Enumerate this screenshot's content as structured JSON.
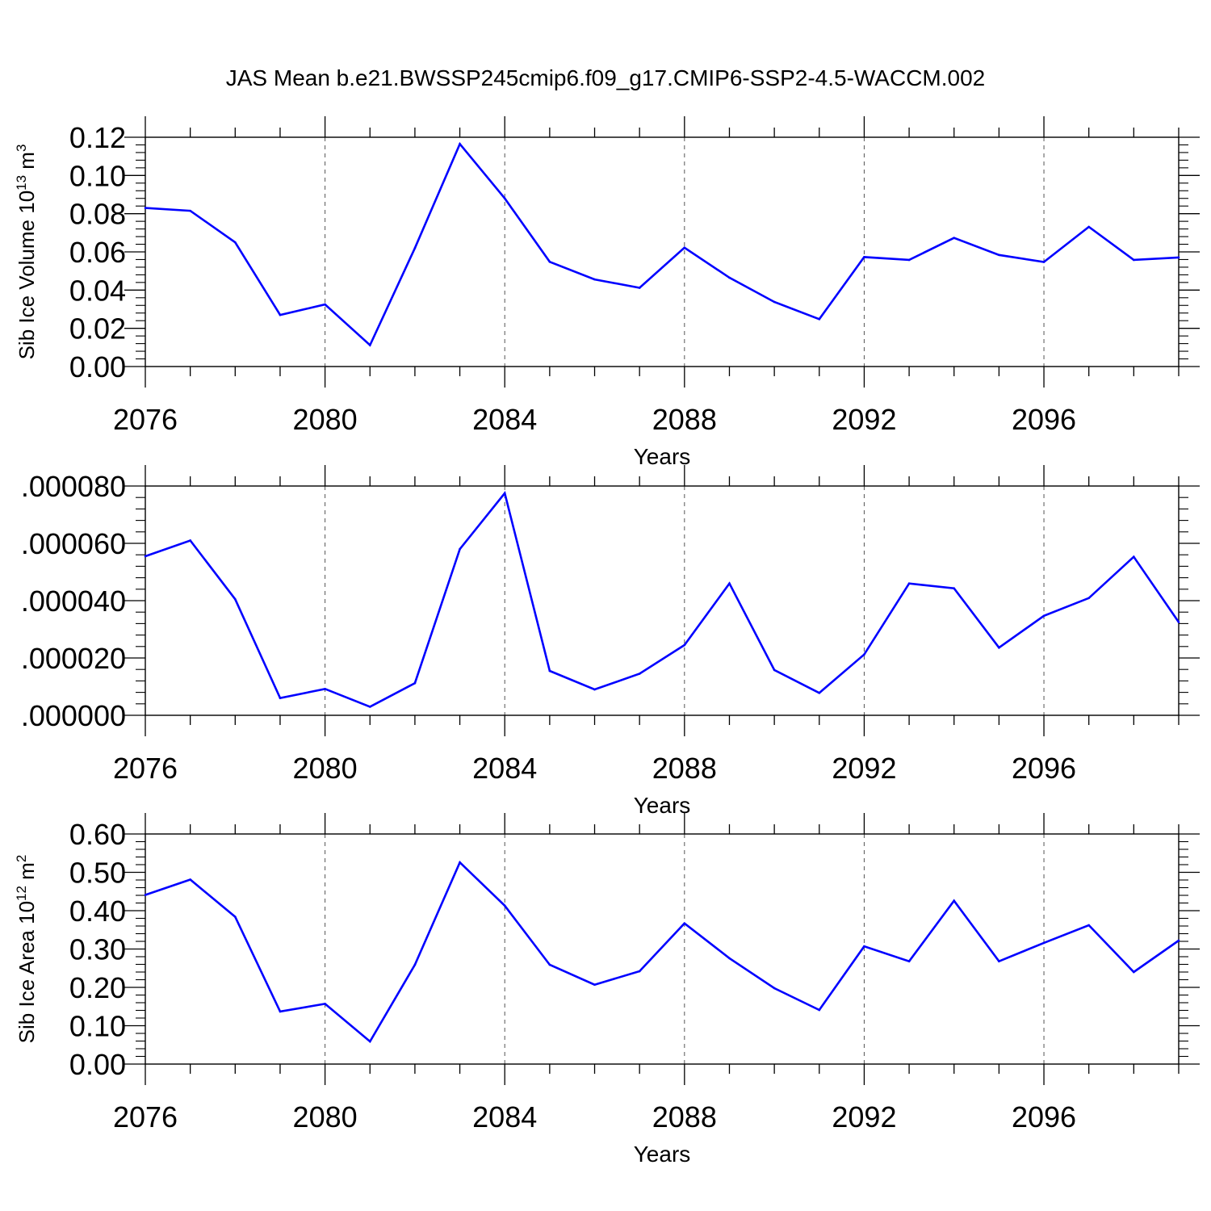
{
  "title": "JAS Mean b.e21.BWSSP245cmip6.f09_g17.CMIP6-SSP2-4.5-WACCM.002",
  "colors": {
    "line": "#0000ff",
    "axis": "#000000",
    "grid": "#555555"
  },
  "chart_data": [
    {
      "type": "line",
      "ylabel": {
        "main": "Sib Ice Volume 10",
        "sup1": "13",
        "unit": " m",
        "sup2": "3"
      },
      "xlabel": "Years",
      "xlim": [
        2076,
        2099
      ],
      "xticks": [
        2076,
        2080,
        2084,
        2088,
        2092,
        2096
      ],
      "xtick_labels": [
        "2076",
        "2080",
        "2084",
        "2088",
        "2092",
        "2096"
      ],
      "ylim": [
        0.0,
        0.12
      ],
      "yticks": [
        0.0,
        0.02,
        0.04,
        0.06,
        0.08,
        0.1,
        0.12
      ],
      "ytick_labels": [
        "0.00",
        "0.02",
        "0.04",
        "0.06",
        "0.08",
        "0.10",
        "0.12"
      ],
      "x": [
        2076,
        2077,
        2078,
        2079,
        2080,
        2081,
        2082,
        2083,
        2084,
        2085,
        2086,
        2087,
        2088,
        2089,
        2090,
        2091,
        2092,
        2093,
        2094,
        2095,
        2096,
        2097,
        2098,
        2099
      ],
      "values": [
        0.083,
        0.0815,
        0.065,
        0.027,
        0.0325,
        0.0112,
        0.062,
        0.1165,
        0.088,
        0.0548,
        0.0456,
        0.0412,
        0.0622,
        0.0465,
        0.0338,
        0.0248,
        0.0573,
        0.0558,
        0.0673,
        0.0584,
        0.0547,
        0.0731,
        0.0558,
        0.0571
      ]
    },
    {
      "type": "line",
      "ylabel": null,
      "xlabel": "Years",
      "xlim": [
        2076,
        2099
      ],
      "xticks": [
        2076,
        2080,
        2084,
        2088,
        2092,
        2096
      ],
      "xtick_labels": [
        "2076",
        "2080",
        "2084",
        "2088",
        "2092",
        "2096"
      ],
      "ylim": [
        0.0,
        8e-05
      ],
      "yticks": [
        0.0,
        2e-05,
        4e-05,
        6e-05,
        8e-05
      ],
      "ytick_labels": [
        ".000000",
        ".000020",
        ".000040",
        ".000060",
        ".000080"
      ],
      "x": [
        2076,
        2077,
        2078,
        2079,
        2080,
        2081,
        2082,
        2083,
        2084,
        2085,
        2086,
        2087,
        2088,
        2089,
        2090,
        2091,
        2092,
        2093,
        2094,
        2095,
        2096,
        2097,
        2098,
        2099
      ],
      "values": [
        5.55e-05,
        6.1e-05,
        4.05e-05,
        6e-06,
        9.2e-06,
        3e-06,
        1.12e-05,
        5.8e-05,
        7.75e-05,
        1.55e-05,
        9e-06,
        1.45e-05,
        2.45e-05,
        4.6e-05,
        1.58e-05,
        7.8e-06,
        2.12e-05,
        4.6e-05,
        4.43e-05,
        2.36e-05,
        3.47e-05,
        4.09e-05,
        5.53e-05,
        3.25e-05
      ]
    },
    {
      "type": "line",
      "ylabel": {
        "main": "Sib Ice Area 10",
        "sup1": "12",
        "unit": " m",
        "sup2": "2"
      },
      "xlabel": "Years",
      "xlim": [
        2076,
        2099
      ],
      "xticks": [
        2076,
        2080,
        2084,
        2088,
        2092,
        2096
      ],
      "xtick_labels": [
        "2076",
        "2080",
        "2084",
        "2088",
        "2092",
        "2096"
      ],
      "ylim": [
        0.0,
        0.6
      ],
      "yticks": [
        0.0,
        0.1,
        0.2,
        0.3,
        0.4,
        0.5,
        0.6
      ],
      "ytick_labels": [
        "0.00",
        "0.10",
        "0.20",
        "0.30",
        "0.40",
        "0.50",
        "0.60"
      ],
      "x": [
        2076,
        2077,
        2078,
        2079,
        2080,
        2081,
        2082,
        2083,
        2084,
        2085,
        2086,
        2087,
        2088,
        2089,
        2090,
        2091,
        2092,
        2093,
        2094,
        2095,
        2096,
        2097,
        2098,
        2099
      ],
      "values": [
        0.441,
        0.481,
        0.384,
        0.137,
        0.157,
        0.059,
        0.259,
        0.526,
        0.413,
        0.259,
        0.207,
        0.242,
        0.367,
        0.276,
        0.198,
        0.141,
        0.307,
        0.268,
        0.426,
        0.268,
        0.316,
        0.362,
        0.24,
        0.322
      ]
    }
  ]
}
